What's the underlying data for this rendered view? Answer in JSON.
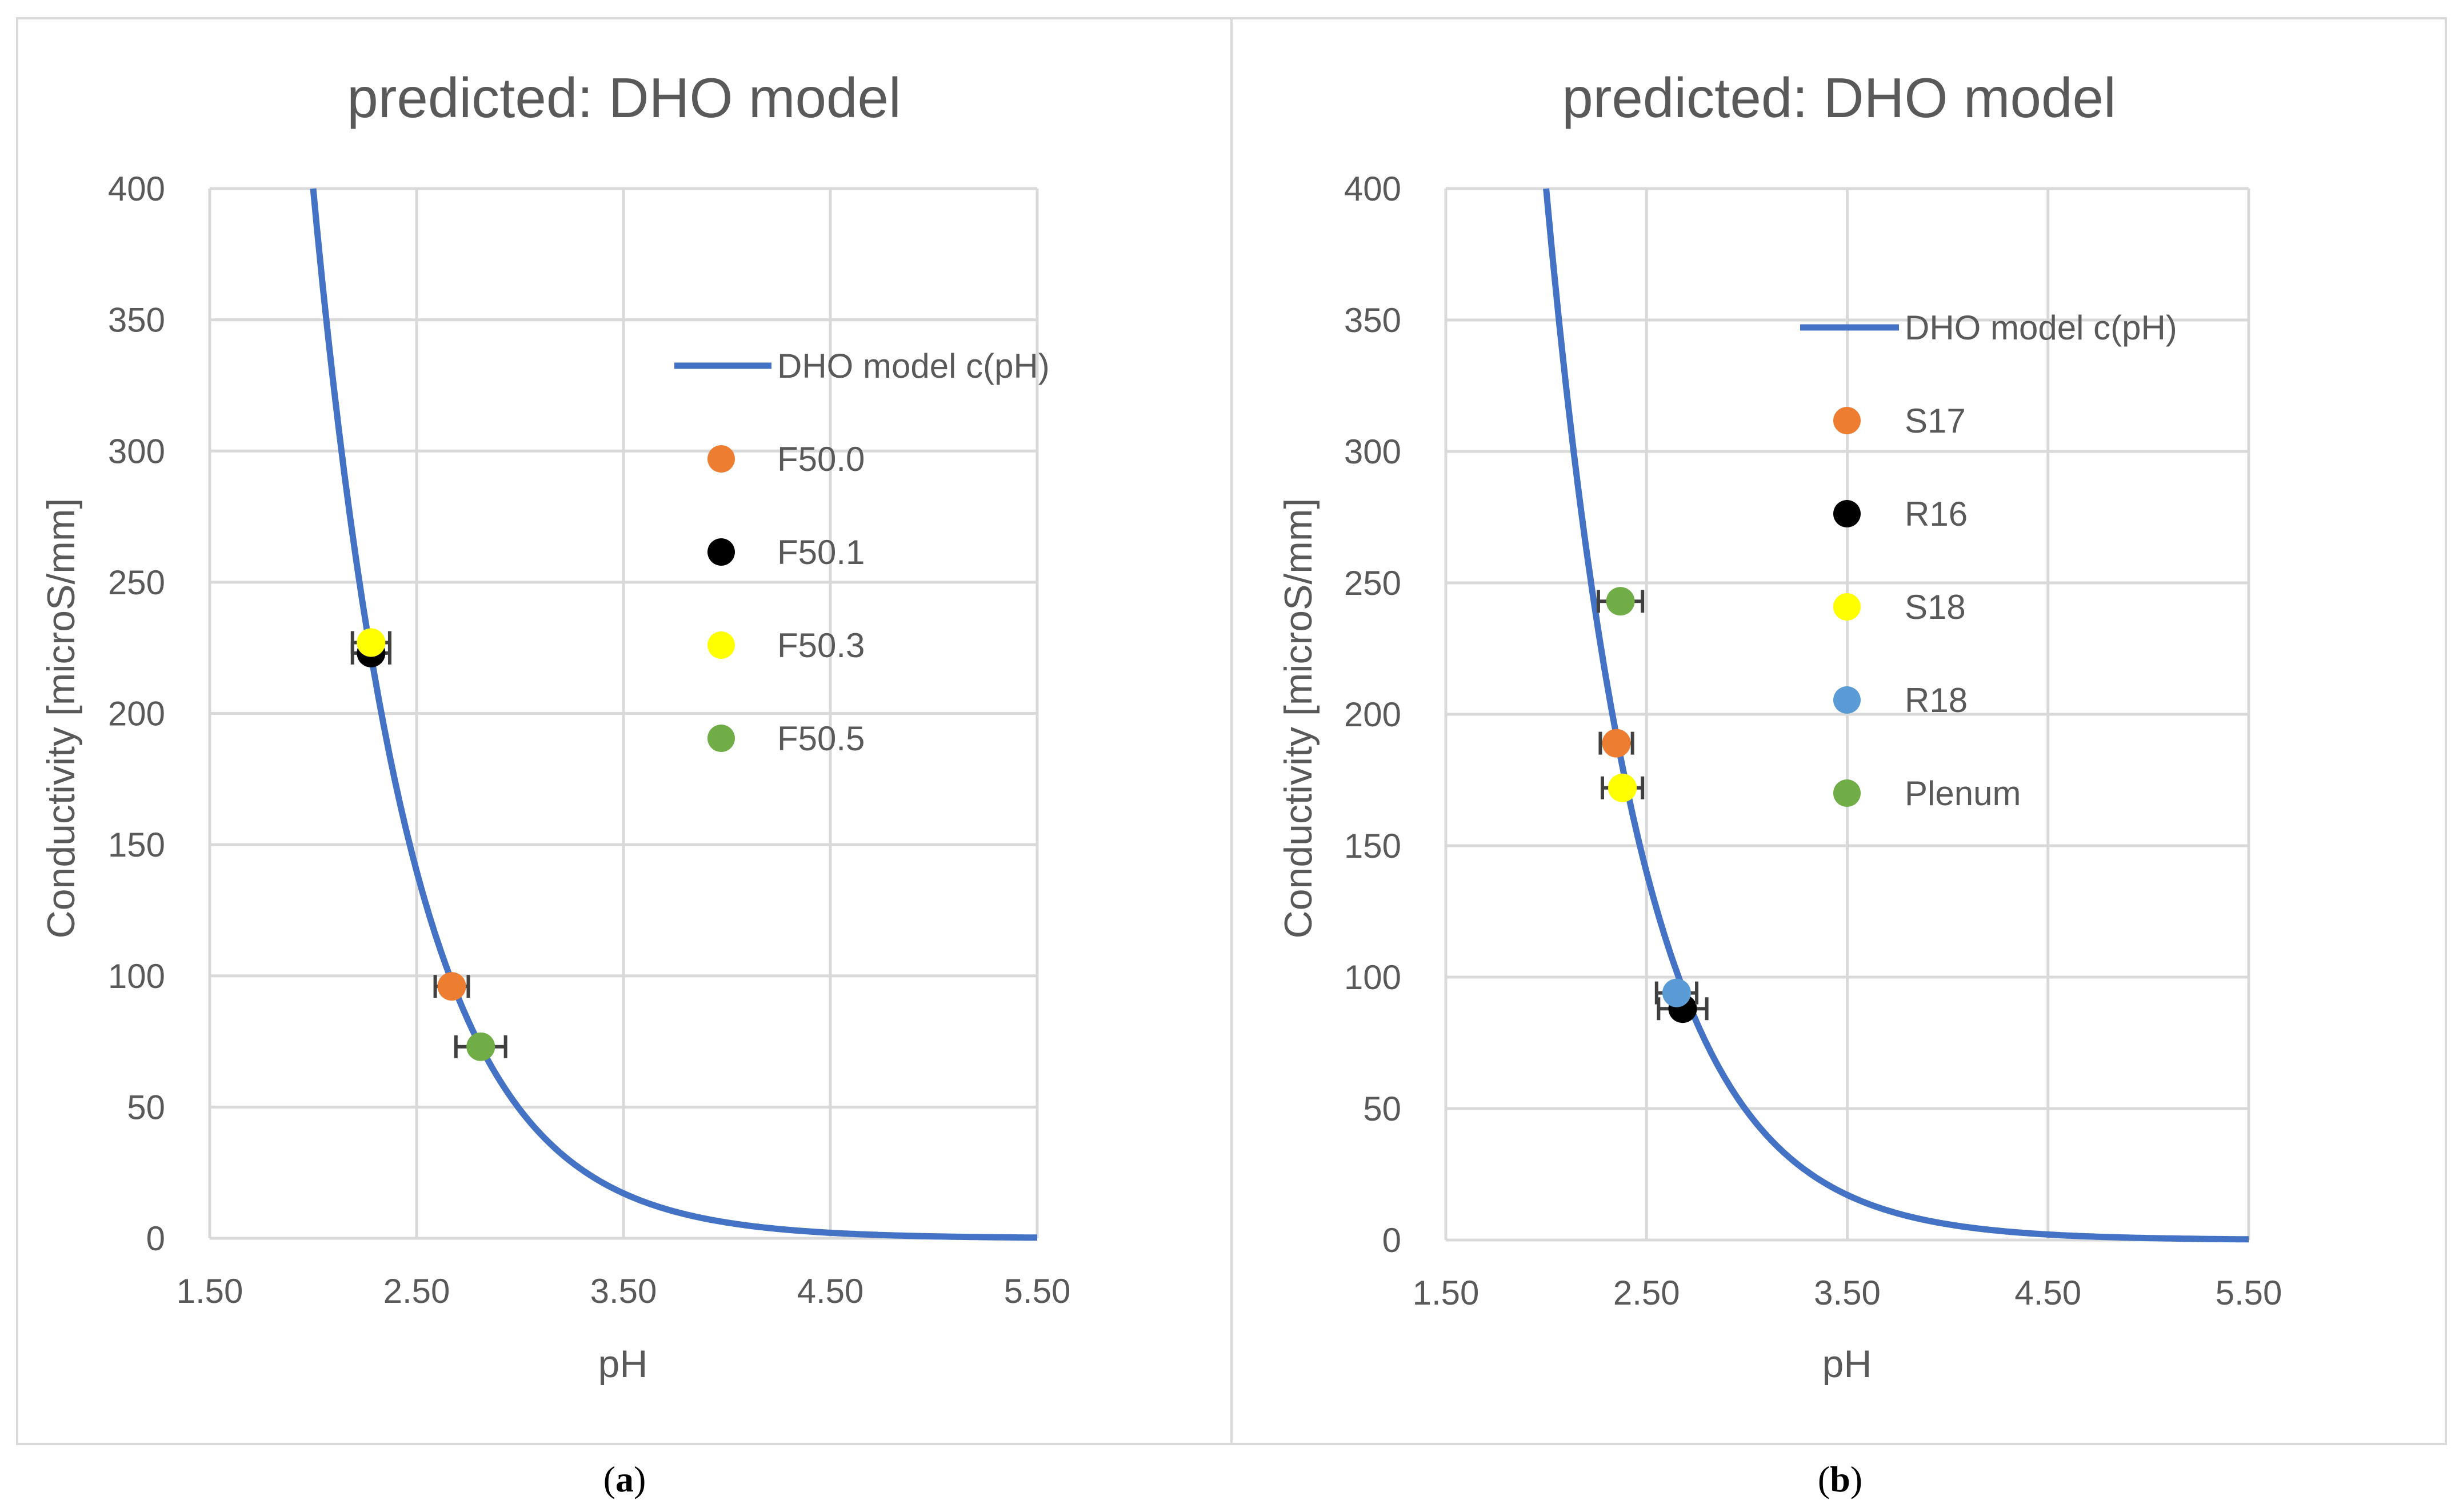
{
  "chart_data": [
    {
      "type": "scatter",
      "title": "predicted: DHO model",
      "xlabel": "pH",
      "ylabel": "Conductivity [microS/mm]",
      "xlim": [
        1.5,
        5.5
      ],
      "ylim": [
        0,
        400
      ],
      "x_ticks": [
        1.5,
        2.5,
        3.5,
        4.5,
        5.5
      ],
      "x_tick_labels": [
        "1.50",
        "2.50",
        "3.50",
        "4.50",
        "5.50"
      ],
      "y_ticks": [
        0,
        50,
        100,
        150,
        200,
        250,
        300,
        350,
        400
      ],
      "y_tick_labels": [
        "0",
        "50",
        "100",
        "150",
        "200",
        "250",
        "300",
        "350",
        "400"
      ],
      "grid": true,
      "legend_position": "right",
      "model": {
        "name": "DHO model c(pH)",
        "color": "#4472c4",
        "a": 400,
        "x0": 2.0,
        "k": 2.1,
        "x_end": 5.5
      },
      "points": [
        {
          "name": "F50.0",
          "x": 2.67,
          "y": 96,
          "xerr": 0.08,
          "color": "#ed7d31"
        },
        {
          "name": "F50.1",
          "x": 2.28,
          "y": 223,
          "xerr": 0.09,
          "color": "#000000"
        },
        {
          "name": "F50.3",
          "x": 2.28,
          "y": 227,
          "xerr": 0.09,
          "color": "#ffff00"
        },
        {
          "name": "F50.5",
          "x": 2.81,
          "y": 73,
          "xerr": 0.12,
          "color": "#70ad47"
        }
      ],
      "legend_order": [
        "model",
        "F50.0",
        "F50.1",
        "F50.3",
        "F50.5"
      ],
      "caption": "a"
    },
    {
      "type": "scatter",
      "title": "predicted: DHO model",
      "xlabel": "pH",
      "ylabel": "Conductivity [microS/mm]",
      "xlim": [
        1.5,
        5.5
      ],
      "ylim": [
        0,
        400
      ],
      "x_ticks": [
        1.5,
        2.5,
        3.5,
        4.5,
        5.5
      ],
      "x_tick_labels": [
        "1.50",
        "2.50",
        "3.50",
        "4.50",
        "5.50"
      ],
      "y_ticks": [
        0,
        50,
        100,
        150,
        200,
        250,
        300,
        350,
        400
      ],
      "y_tick_labels": [
        "0",
        "50",
        "100",
        "150",
        "200",
        "250",
        "300",
        "350",
        "400"
      ],
      "grid": true,
      "legend_position": "right",
      "model": {
        "name": "DHO model c(pH)",
        "color": "#4472c4",
        "a": 400,
        "x0": 2.0,
        "k": 2.1,
        "x_end": 5.5
      },
      "points": [
        {
          "name": "S17",
          "x": 2.35,
          "y": 189,
          "xerr": 0.08,
          "color": "#ed7d31"
        },
        {
          "name": "R16",
          "x": 2.68,
          "y": 88,
          "xerr": 0.12,
          "color": "#000000"
        },
        {
          "name": "S18",
          "x": 2.38,
          "y": 172,
          "xerr": 0.1,
          "color": "#ffff00"
        },
        {
          "name": "R18",
          "x": 2.65,
          "y": 94,
          "xerr": 0.1,
          "color": "#5b9bd5"
        },
        {
          "name": "Plenum",
          "x": 2.37,
          "y": 243,
          "xerr": 0.11,
          "color": "#70ad47"
        }
      ],
      "legend_order": [
        "model",
        "S17",
        "R16",
        "S18",
        "R18",
        "Plenum"
      ],
      "caption": "b"
    }
  ]
}
